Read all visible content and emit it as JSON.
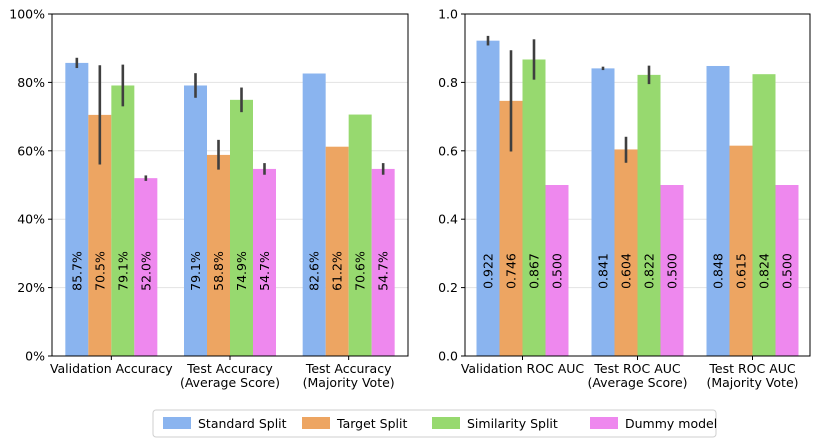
{
  "legend": {
    "placement": "bottom-center",
    "entries": [
      {
        "label": "Standard Split",
        "color": "#8ab4ef"
      },
      {
        "label": "Target Split",
        "color": "#eda562"
      },
      {
        "label": "Similarity Split",
        "color": "#97d96f"
      },
      {
        "label": "Dummy model",
        "color": "#ee88ee"
      }
    ]
  },
  "chart_data": [
    {
      "type": "bar",
      "title": "",
      "xlabel": "",
      "ylabel": "",
      "ylim": [
        0,
        100
      ],
      "yticks": [
        0,
        20,
        40,
        60,
        80,
        100
      ],
      "ytick_labels": [
        "0%",
        "20%",
        "40%",
        "60%",
        "80%",
        "100%"
      ],
      "grid": "horizontal",
      "categories": [
        "Validation Accuracy",
        "Test Accuracy\n(Average Score)",
        "Test Accuracy\n(Majority Vote)"
      ],
      "series": [
        {
          "name": "Standard Split",
          "values": [
            85.7,
            79.1,
            82.6
          ],
          "err_low": [
            84.2,
            75.5,
            null
          ],
          "err_high": [
            87.2,
            82.7,
            null
          ],
          "labels": [
            "85.7%",
            "79.1%",
            "82.6%"
          ]
        },
        {
          "name": "Target Split",
          "values": [
            70.5,
            58.8,
            61.2
          ],
          "err_low": [
            56.0,
            54.5,
            null
          ],
          "err_high": [
            85.0,
            63.2,
            null
          ],
          "labels": [
            "70.5%",
            "58.8%",
            "61.2%"
          ]
        },
        {
          "name": "Similarity Split",
          "values": [
            79.1,
            74.9,
            70.6
          ],
          "err_low": [
            73.0,
            71.3,
            null
          ],
          "err_high": [
            85.2,
            78.5,
            null
          ],
          "labels": [
            "79.1%",
            "74.9%",
            "70.6%"
          ]
        },
        {
          "name": "Dummy model",
          "values": [
            52.0,
            54.7,
            54.7
          ],
          "err_low": [
            51.2,
            53.0,
            53.0
          ],
          "err_high": [
            52.8,
            56.4,
            56.4
          ],
          "labels": [
            "52.0%",
            "54.7%",
            "54.7%"
          ]
        }
      ]
    },
    {
      "type": "bar",
      "title": "",
      "xlabel": "",
      "ylabel": "",
      "ylim": [
        0,
        1.0
      ],
      "yticks": [
        0,
        0.2,
        0.4,
        0.6,
        0.8,
        1.0
      ],
      "ytick_labels": [
        "0.0",
        "0.2",
        "0.4",
        "0.6",
        "0.8",
        "1.0"
      ],
      "grid": "horizontal",
      "categories": [
        "Validation ROC AUC",
        "Test ROC AUC\n(Average Score)",
        "Test ROC AUC\n(Majority Vote)"
      ],
      "series": [
        {
          "name": "Standard Split",
          "values": [
            0.922,
            0.841,
            0.848
          ],
          "err_low": [
            0.908,
            0.836,
            null
          ],
          "err_high": [
            0.936,
            0.846,
            null
          ],
          "labels": [
            "0.922",
            "0.841",
            "0.848"
          ]
        },
        {
          "name": "Target Split",
          "values": [
            0.746,
            0.604,
            0.615
          ],
          "err_low": [
            0.598,
            0.565,
            null
          ],
          "err_high": [
            0.894,
            0.641,
            null
          ],
          "labels": [
            "0.746",
            "0.604",
            "0.615"
          ]
        },
        {
          "name": "Similarity Split",
          "values": [
            0.867,
            0.822,
            0.824
          ],
          "err_low": [
            0.808,
            0.795,
            null
          ],
          "err_high": [
            0.926,
            0.849,
            null
          ],
          "labels": [
            "0.867",
            "0.822",
            "0.824"
          ]
        },
        {
          "name": "Dummy model",
          "values": [
            0.5,
            0.5,
            0.5
          ],
          "err_low": [
            null,
            null,
            null
          ],
          "err_high": [
            null,
            null,
            null
          ],
          "labels": [
            "0.500",
            "0.500",
            "0.500"
          ]
        }
      ]
    }
  ]
}
